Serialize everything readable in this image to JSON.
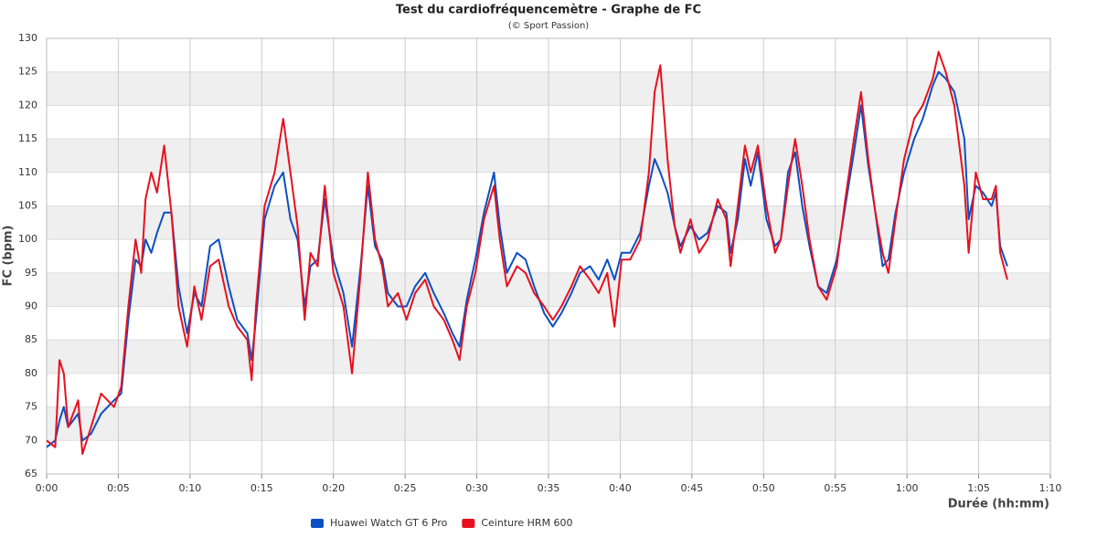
{
  "chart_data": {
    "type": "line",
    "title": "Test du cardiofréquencemètre - Graphe de FC",
    "subtitle": "(© Sport Passion)",
    "x_label": "Durée (hh:mm)",
    "y_label": "FC (bpm)",
    "x": [
      0,
      0.6,
      0.9,
      1.2,
      1.5,
      2.2,
      2.5,
      3.1,
      3.8,
      4.7,
      5.2,
      5.7,
      6.2,
      6.6,
      6.9,
      7.3,
      7.7,
      8.2,
      8.7,
      9.2,
      9.8,
      10.3,
      10.8,
      11.4,
      12.0,
      12.7,
      13.3,
      14.0,
      14.3,
      14.6,
      15.2,
      15.9,
      16.5,
      17.0,
      17.5,
      18.0,
      18.4,
      18.9,
      19.4,
      20.0,
      20.7,
      21.3,
      21.9,
      22.4,
      22.9,
      23.4,
      23.8,
      24.5,
      25.1,
      25.7,
      26.4,
      27.0,
      27.7,
      28.3,
      28.8,
      29.3,
      29.9,
      30.5,
      31.2,
      31.6,
      32.1,
      32.8,
      33.4,
      34.0,
      34.7,
      35.3,
      35.9,
      36.6,
      37.2,
      37.9,
      38.5,
      39.1,
      39.6,
      40.1,
      40.7,
      41.4,
      42.0,
      42.4,
      42.8,
      43.3,
      43.8,
      44.2,
      44.9,
      45.5,
      46.1,
      46.8,
      47.4,
      47.7,
      48.2,
      48.7,
      49.1,
      49.6,
      50.2,
      50.8,
      51.2,
      51.7,
      52.2,
      52.7,
      53.2,
      53.8,
      54.4,
      55.1,
      55.7,
      56.3,
      56.8,
      57.3,
      57.8,
      58.3,
      58.7,
      59.2,
      59.8,
      60.5,
      61.1,
      61.8,
      62.2,
      62.7,
      63.3,
      64.0,
      64.3,
      64.8,
      65.3,
      65.9,
      66.2,
      66.5,
      67.0
    ],
    "series": [
      {
        "name": "Huawei Watch GT 6 Pro",
        "color": "#0b4fc4",
        "values": [
          69,
          70,
          73,
          75,
          72,
          74,
          70,
          71,
          74,
          76,
          77,
          88,
          97,
          96,
          100,
          98,
          101,
          104,
          104,
          93,
          86,
          92,
          90,
          99,
          100,
          93,
          88,
          86,
          82,
          88,
          103,
          108,
          110,
          103,
          100,
          90,
          96,
          97,
          106,
          97,
          92,
          84,
          96,
          108,
          99,
          97,
          92,
          90,
          90,
          93,
          95,
          92,
          89,
          86,
          84,
          91,
          97,
          104,
          110,
          102,
          95,
          98,
          97,
          93,
          89,
          87,
          89,
          92,
          95,
          96,
          94,
          97,
          94,
          98,
          98,
          101,
          108,
          112,
          110,
          107,
          102,
          99,
          102,
          100,
          101,
          105,
          104,
          98,
          103,
          112,
          108,
          113,
          103,
          99,
          100,
          110,
          113,
          105,
          99,
          93,
          92,
          97,
          105,
          113,
          120,
          111,
          104,
          96,
          97,
          104,
          110,
          115,
          118,
          123,
          125,
          124,
          122,
          115,
          103,
          108,
          107,
          105,
          107,
          99,
          96
        ]
      },
      {
        "name": "Ceinture HRM 600",
        "color": "#e8101e",
        "values": [
          70,
          69,
          82,
          80,
          72,
          76,
          68,
          72,
          77,
          75,
          78,
          90,
          100,
          95,
          106,
          110,
          107,
          114,
          104,
          90,
          84,
          93,
          88,
          96,
          97,
          90,
          87,
          85,
          79,
          90,
          105,
          110,
          118,
          110,
          102,
          88,
          98,
          96,
          108,
          95,
          90,
          80,
          95,
          110,
          100,
          96,
          90,
          92,
          88,
          92,
          94,
          90,
          88,
          85,
          82,
          90,
          95,
          103,
          108,
          100,
          93,
          96,
          95,
          92,
          90,
          88,
          90,
          93,
          96,
          94,
          92,
          95,
          87,
          97,
          97,
          100,
          110,
          122,
          126,
          112,
          102,
          98,
          103,
          98,
          100,
          106,
          103,
          96,
          105,
          114,
          110,
          114,
          105,
          98,
          100,
          108,
          115,
          108,
          100,
          93,
          91,
          96,
          106,
          115,
          122,
          112,
          104,
          98,
          95,
          103,
          112,
          118,
          120,
          124,
          128,
          125,
          120,
          108,
          98,
          110,
          106,
          106,
          108,
          98,
          94
        ]
      }
    ],
    "xlim": [
      0,
      70
    ],
    "xticks": [
      {
        "value": 0,
        "label": "0:00"
      },
      {
        "value": 5,
        "label": "0:05"
      },
      {
        "value": 10,
        "label": "0:10"
      },
      {
        "value": 15,
        "label": "0:15"
      },
      {
        "value": 20,
        "label": "0:20"
      },
      {
        "value": 25,
        "label": "0:25"
      },
      {
        "value": 30,
        "label": "0:30"
      },
      {
        "value": 35,
        "label": "0:35"
      },
      {
        "value": 40,
        "label": "0:40"
      },
      {
        "value": 45,
        "label": "0:45"
      },
      {
        "value": 50,
        "label": "0:50"
      },
      {
        "value": 55,
        "label": "0:55"
      },
      {
        "value": 60,
        "label": "1:00"
      },
      {
        "value": 65,
        "label": "1:05"
      },
      {
        "value": 70,
        "label": "1:10"
      }
    ],
    "ylim": [
      65,
      130
    ],
    "yticks": [
      65,
      70,
      75,
      80,
      85,
      90,
      95,
      100,
      105,
      110,
      115,
      120,
      125,
      130
    ],
    "grid": true,
    "alternate_bands": true,
    "legend": "bottom"
  }
}
